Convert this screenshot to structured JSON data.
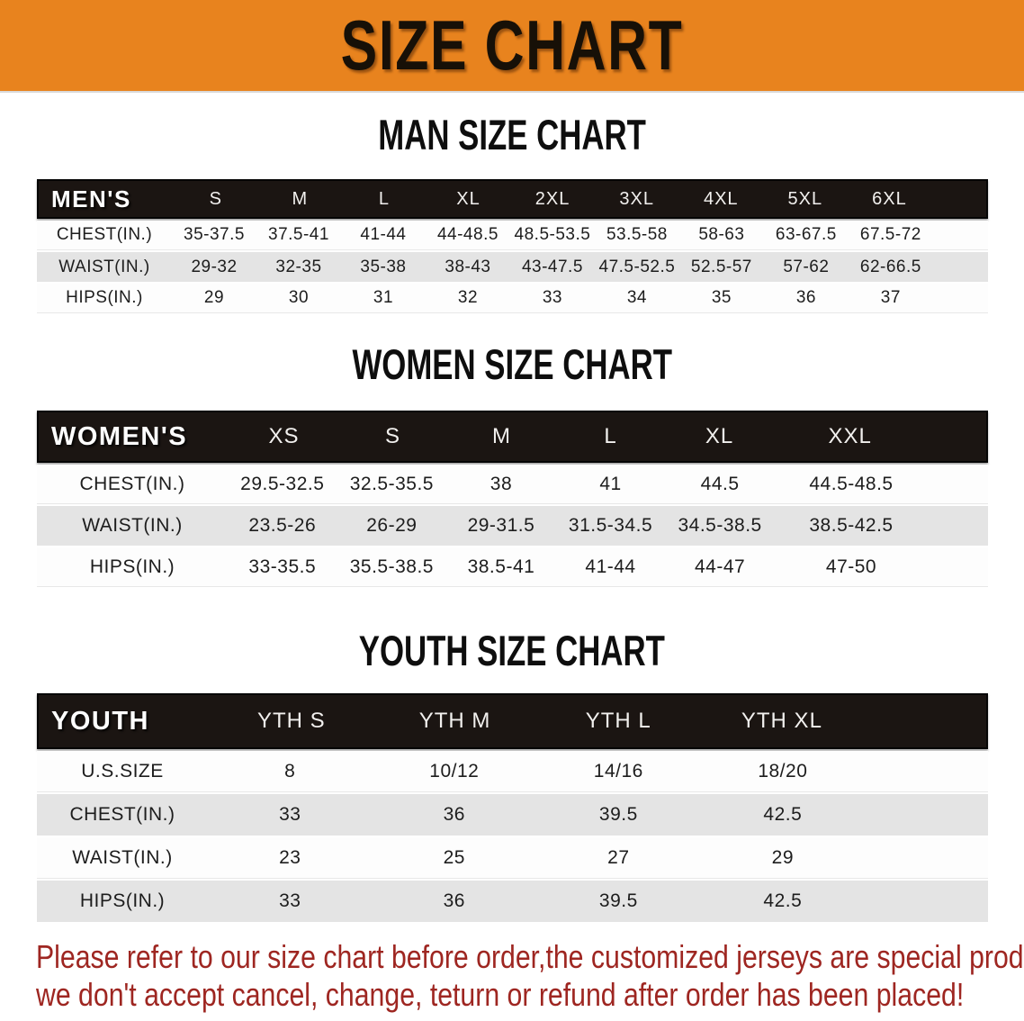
{
  "banner": {
    "title": "SIZE CHART"
  },
  "colors": {
    "banner_bg": "#E8831E",
    "header_bg": "#1B1512",
    "row_gray": "#E4E4E4",
    "row_white": "#FDFDFD",
    "note_red": "#9E2621"
  },
  "sections": {
    "men": {
      "title": "MAN SIZE CHART",
      "table": {
        "corner_label": "MEN'S",
        "columns": [
          "S",
          "M",
          "L",
          "XL",
          "2XL",
          "3XL",
          "4XL",
          "5XL",
          "6XL"
        ],
        "rows": [
          {
            "label": "CHEST(IN.)",
            "values": [
              "35-37.5",
              "37.5-41",
              "41-44",
              "44-48.5",
              "48.5-53.5",
              "53.5-58",
              "58-63",
              "63-67.5",
              "67.5-72"
            ]
          },
          {
            "label": "WAIST(IN.)",
            "values": [
              "29-32",
              "32-35",
              "35-38",
              "38-43",
              "43-47.5",
              "47.5-52.5",
              "52.5-57",
              "57-62",
              "62-66.5"
            ]
          },
          {
            "label": "HIPS(IN.)",
            "values": [
              "29",
              "30",
              "31",
              "32",
              "33",
              "34",
              "35",
              "36",
              "37"
            ]
          }
        ]
      }
    },
    "women": {
      "title": "WOMEN SIZE CHART",
      "table": {
        "corner_label": "WOMEN'S",
        "columns": [
          "XS",
          "S",
          "M",
          "L",
          "XL",
          "XXL"
        ],
        "rows": [
          {
            "label": "CHEST(IN.)",
            "values": [
              "29.5-32.5",
              "32.5-35.5",
              "38",
              "41",
              "44.5",
              "44.5-48.5"
            ]
          },
          {
            "label": "WAIST(IN.)",
            "values": [
              "23.5-26",
              "26-29",
              "29-31.5",
              "31.5-34.5",
              "34.5-38.5",
              "38.5-42.5"
            ]
          },
          {
            "label": "HIPS(IN.)",
            "values": [
              "33-35.5",
              "35.5-38.5",
              "38.5-41",
              "41-44",
              "44-47",
              "47-50"
            ]
          }
        ]
      }
    },
    "youth": {
      "title": "YOUTH SIZE CHART",
      "table": {
        "corner_label": "YOUTH",
        "columns": [
          "YTH S",
          "YTH M",
          "YTH L",
          "YTH XL"
        ],
        "rows": [
          {
            "label": "U.S.SIZE",
            "values": [
              "8",
              "10/12",
              "14/16",
              "18/20"
            ]
          },
          {
            "label": "CHEST(IN.)",
            "values": [
              "33",
              "36",
              "39.5",
              "42.5"
            ]
          },
          {
            "label": "WAIST(IN.)",
            "values": [
              "23",
              "25",
              "27",
              "29"
            ]
          },
          {
            "label": "HIPS(IN.)",
            "values": [
              "33",
              "36",
              "39.5",
              "42.5"
            ]
          }
        ]
      }
    }
  },
  "note": {
    "line1": "Please refer to our size chart before order,the customized jerseys are special products,",
    "line2": "we don't accept cancel, change, teturn or refund after order has been placed!"
  }
}
